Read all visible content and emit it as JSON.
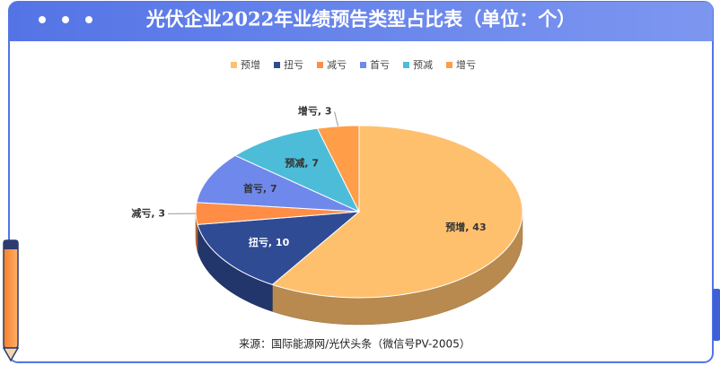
{
  "chart_data": {
    "type": "pie3d",
    "title": "光伏企业2022年业绩预告类型占比表（单位：个）",
    "categories": [
      "预增",
      "扭亏",
      "减亏",
      "首亏",
      "预减",
      "增亏"
    ],
    "values": [
      43,
      10,
      3,
      7,
      7,
      3
    ],
    "value_labels": [
      "预增, 43",
      "扭亏, 10",
      "减亏, 3",
      "首亏, 7",
      "预减, 7",
      "增亏, 3"
    ],
    "colors": [
      "#ffc06e",
      "#2f4b94",
      "#ff8d45",
      "#6f88ec",
      "#4dbcd8",
      "#ff9d48"
    ],
    "legend": "top",
    "source": "来源：国际能源网/光伏头条（微信号PV-2005）"
  }
}
